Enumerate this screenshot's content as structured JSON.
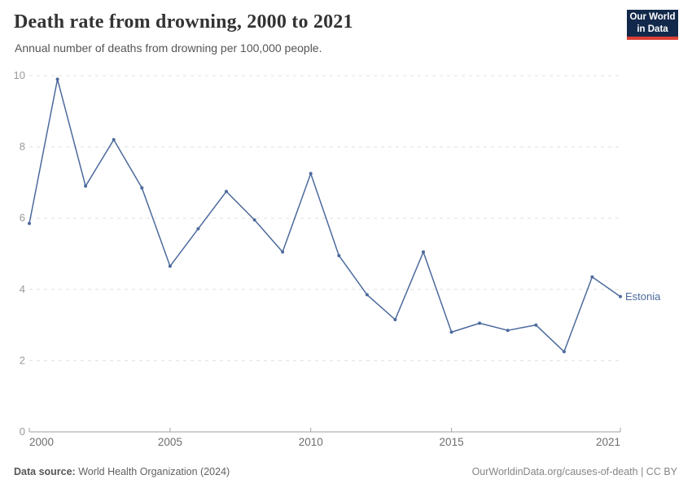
{
  "header": {
    "title": "Death rate from drowning, 2000 to 2021",
    "subtitle": "Annual number of deaths from drowning per 100,000 people.",
    "logo": {
      "line1": "Our World",
      "line2": "in Data"
    }
  },
  "chart_data": {
    "type": "line",
    "title": "Death rate from drowning, 2000 to 2021",
    "xlabel": "",
    "ylabel": "Annual deaths from drowning per 100,000 people",
    "xlim": [
      2000,
      2021
    ],
    "ylim": [
      0,
      10
    ],
    "x_ticks": [
      2000,
      2005,
      2010,
      2015,
      2021
    ],
    "y_ticks": [
      0,
      2,
      4,
      6,
      8,
      10
    ],
    "grid": "horizontal-dashed",
    "legend_position": "end-of-line",
    "series": [
      {
        "name": "Estonia",
        "color": "#4c6a9c",
        "x": [
          2000,
          2001,
          2002,
          2003,
          2004,
          2005,
          2006,
          2007,
          2008,
          2009,
          2010,
          2011,
          2012,
          2013,
          2014,
          2015,
          2016,
          2017,
          2018,
          2019,
          2020,
          2021
        ],
        "values": [
          5.85,
          9.9,
          6.9,
          8.2,
          6.85,
          4.65,
          5.7,
          6.75,
          5.95,
          5.05,
          7.25,
          4.95,
          3.85,
          3.15,
          5.05,
          2.8,
          3.05,
          2.85,
          3.0,
          2.25,
          4.35,
          3.8
        ]
      }
    ]
  },
  "footer": {
    "source_label": "Data source:",
    "source_value": "World Health Organization (2024)",
    "credit": "OurWorldinData.org/causes-of-death | CC BY"
  },
  "colors": {
    "title": "#333333",
    "subtitle": "#555555",
    "axis_line": "#a1a1a1",
    "gridline": "#e0e0e0",
    "x_tick_label": "#6e6e6e",
    "y_tick_label": "#999999",
    "logo_bg": "#12294b",
    "logo_accent": "#dc3f34",
    "series_line": "#4c6a9c"
  }
}
